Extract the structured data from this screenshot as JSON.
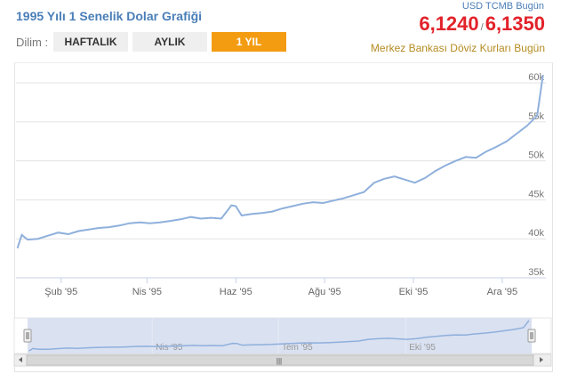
{
  "header": {
    "title": "1995 Yılı 1 Senelik Dolar Grafiği",
    "range_label": "Dilim :",
    "ranges": [
      "HAFTALIK",
      "AYLIK",
      "1 YIL"
    ],
    "active_range": "1 YIL",
    "source": "USD TCMB Bugün",
    "buy_rate": "6,1240",
    "separator": "/",
    "sell_rate": "6,1350",
    "subsource": "Merkez Bankası Döviz Kurları Bugün"
  },
  "colors": {
    "title": "#4a7eb8",
    "rates": "#e2222a",
    "active_button": "#f39c12",
    "subsource": "#b58c22",
    "line": "#8fb0dc",
    "navigator_fill": "#d6deef"
  },
  "chart_data": {
    "type": "line",
    "x_tick_labels": [
      "Şub '95",
      "Nis '95",
      "Haz '95",
      "Ağu '95",
      "Eki '95",
      "Ara '95"
    ],
    "y_tick_labels": [
      "35k",
      "40k",
      "45k",
      "50k",
      "55k",
      "60k"
    ],
    "ylim": [
      35000,
      61500
    ],
    "grid": true,
    "y_axis_side": "right",
    "legend": "none",
    "series": [
      {
        "x": [
          "1995-01-02",
          "1995-01-05",
          "1995-01-09",
          "1995-01-16",
          "1995-01-23",
          "1995-01-30",
          "1995-02-06",
          "1995-02-13",
          "1995-02-20",
          "1995-02-27",
          "1995-03-06",
          "1995-03-13",
          "1995-03-20",
          "1995-03-27",
          "1995-04-03",
          "1995-04-10",
          "1995-04-17",
          "1995-04-24",
          "1995-05-01",
          "1995-05-08",
          "1995-05-15",
          "1995-05-22",
          "1995-05-29",
          "1995-06-01",
          "1995-06-05",
          "1995-06-12",
          "1995-06-19",
          "1995-06-26",
          "1995-07-03",
          "1995-07-10",
          "1995-07-17",
          "1995-07-24",
          "1995-07-31",
          "1995-08-07",
          "1995-08-14",
          "1995-08-21",
          "1995-08-28",
          "1995-09-04",
          "1995-09-11",
          "1995-09-18",
          "1995-09-25",
          "1995-10-02",
          "1995-10-09",
          "1995-10-16",
          "1995-10-23",
          "1995-10-30",
          "1995-11-06",
          "1995-11-13",
          "1995-11-20",
          "1995-11-27",
          "1995-12-04",
          "1995-12-11",
          "1995-12-18",
          "1995-12-25",
          "1995-12-29"
        ],
        "y": [
          38800,
          40500,
          39900,
          40000,
          40400,
          40800,
          40600,
          41000,
          41200,
          41400,
          41500,
          41700,
          42000,
          42100,
          42000,
          42100,
          42300,
          42500,
          42800,
          42600,
          42700,
          42600,
          44300,
          44200,
          43000,
          43200,
          43300,
          43500,
          43900,
          44200,
          44500,
          44700,
          44600,
          44900,
          45200,
          45600,
          46000,
          47200,
          47700,
          48000,
          47600,
          47200,
          47800,
          48700,
          49400,
          50000,
          50500,
          50400,
          51200,
          51800,
          52500,
          53500,
          54500,
          55800,
          61000
        ]
      }
    ]
  },
  "navigator": {
    "month_labels": [
      "Nis '95",
      "Tem '95",
      "Eki '95"
    ],
    "scrollbar_glyph": "|||"
  }
}
